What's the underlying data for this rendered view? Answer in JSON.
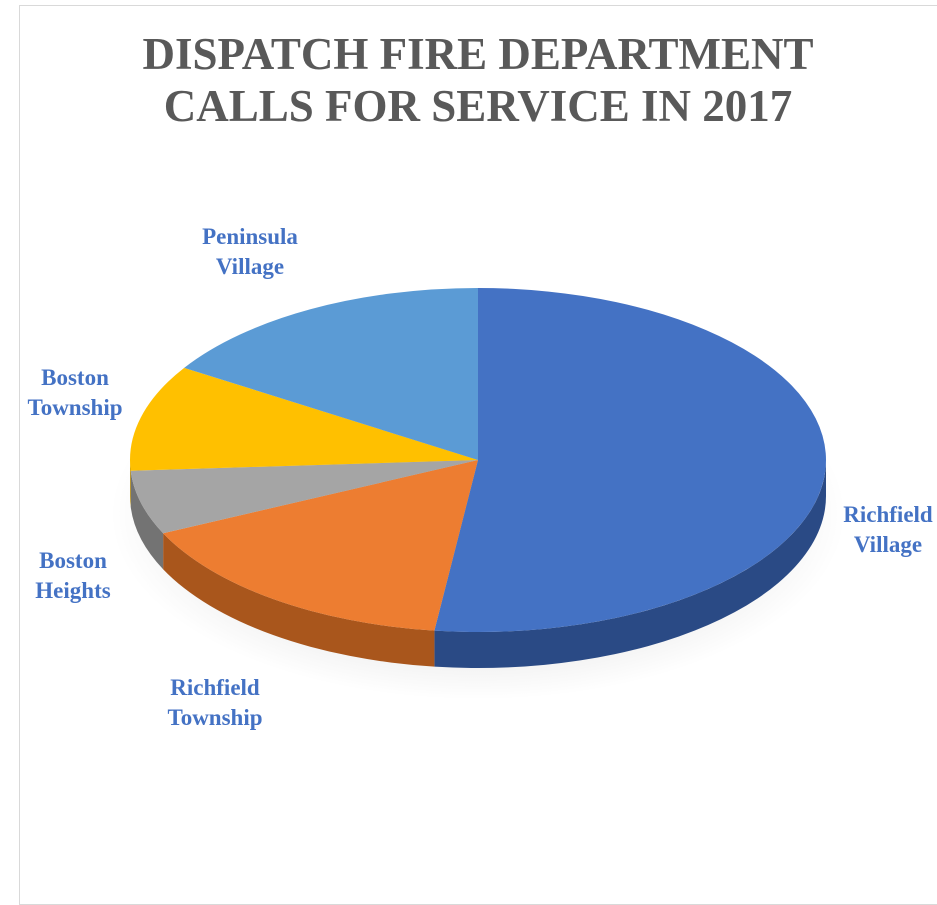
{
  "chart_data": {
    "type": "pie",
    "title_lines": [
      "DISPATCH FIRE DEPARTMENT",
      "CALLS FOR SERVICE IN 2017"
    ],
    "slices": [
      {
        "label_lines": [
          "Richfield",
          "Village"
        ],
        "value": 52,
        "color": "#4472c4",
        "side_color": "#2a4a85",
        "label_color": "#4472c4"
      },
      {
        "label_lines": [
          "Richfield",
          "Township"
        ],
        "value": 16,
        "color": "#ed7d31",
        "side_color": "#a9561c",
        "label_color": "#4472c4"
      },
      {
        "label_lines": [
          "Boston",
          "Heights"
        ],
        "value": 6,
        "color": "#a5a5a5",
        "side_color": "#737373",
        "label_color": "#4472c4"
      },
      {
        "label_lines": [
          "Boston",
          "Township"
        ],
        "value": 10,
        "color": "#ffc000",
        "side_color": "#bf9000",
        "label_color": "#4472c4"
      },
      {
        "label_lines": [
          "Peninsula",
          "Village"
        ],
        "value": 16,
        "color": "#5b9bd5",
        "side_color": "#3e6f9c",
        "label_color": "#4472c4"
      }
    ],
    "legend": "none",
    "style": "3d-pie"
  }
}
